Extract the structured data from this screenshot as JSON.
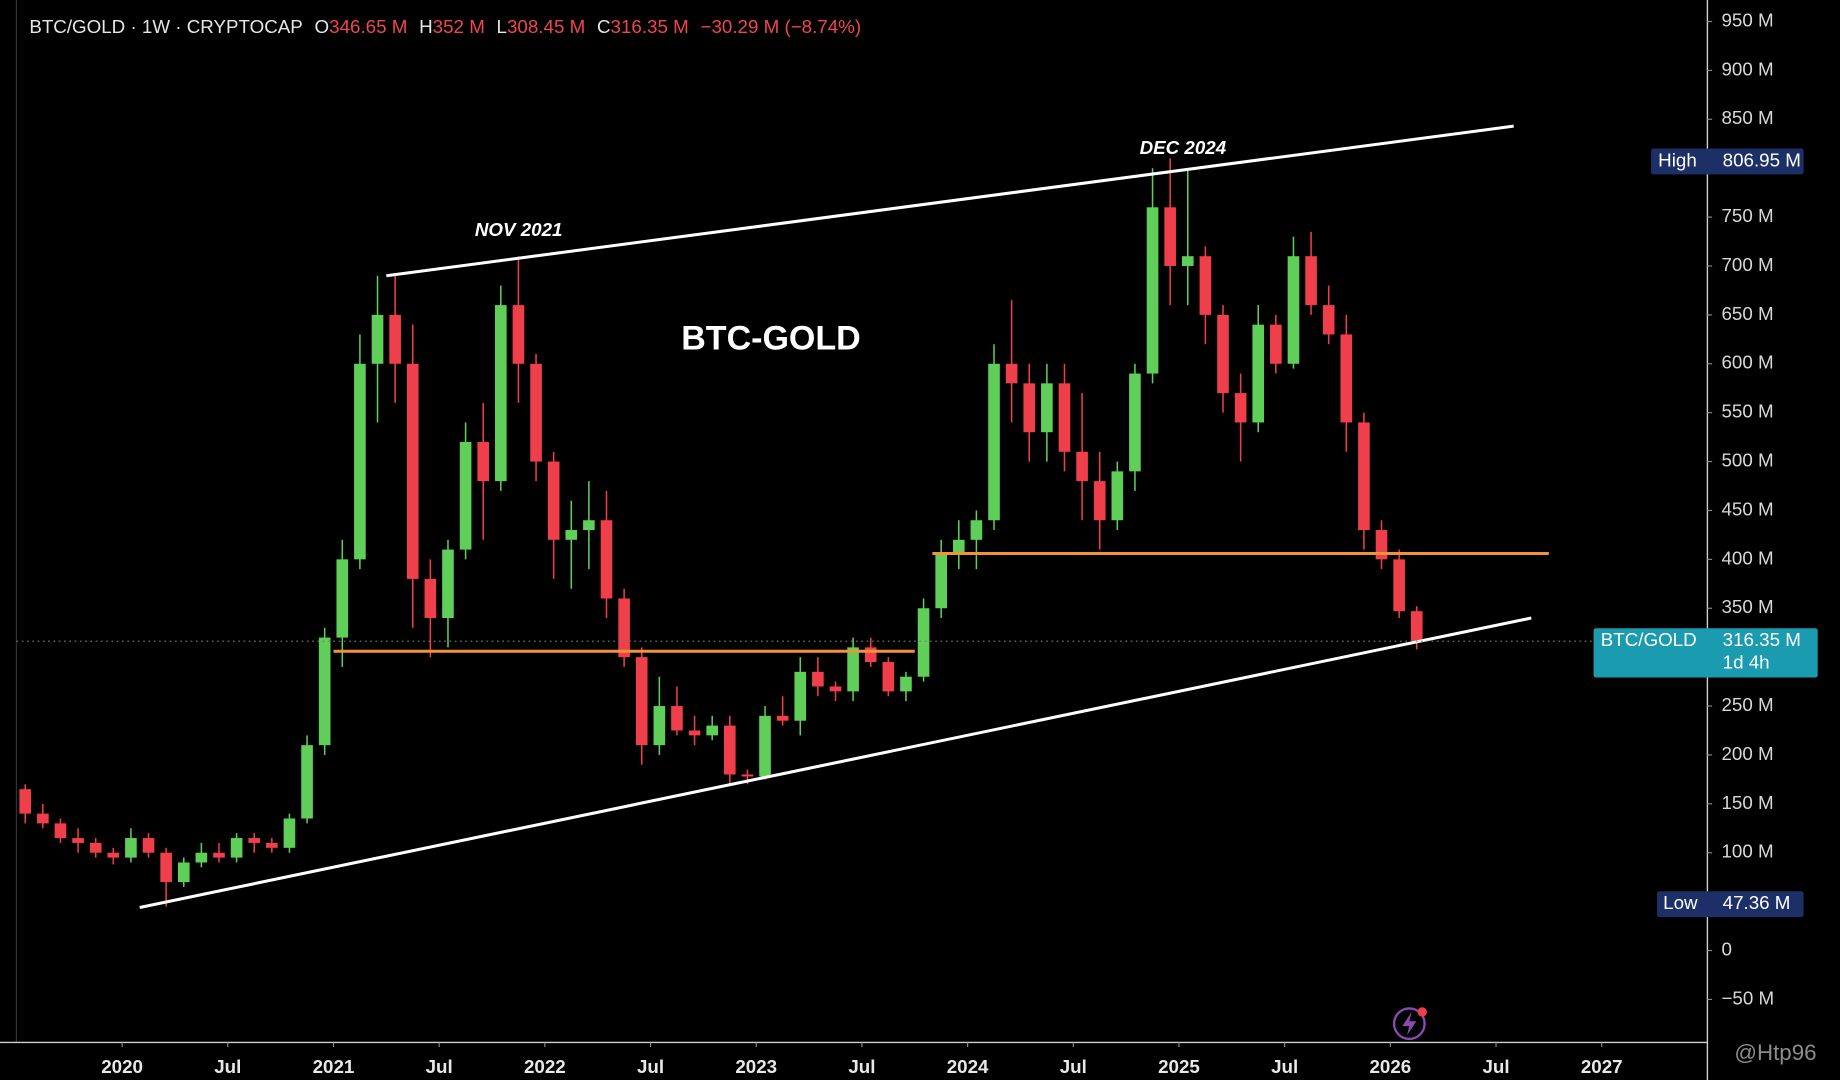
{
  "header": {
    "symbol": "BTC/GOLD · 1W · CRYPTOCAP",
    "ohlc": [
      {
        "key": "O",
        "value": "346.65 M"
      },
      {
        "key": "H",
        "value": "352 M"
      },
      {
        "key": "L",
        "value": "308.45 M"
      },
      {
        "key": "C",
        "value": "316.35 M"
      }
    ],
    "change": "−30.29 M (−8.74%)"
  },
  "chart_data": {
    "type": "candlestick",
    "title": "BTC-GOLD",
    "annotations": [
      "NOV 2021",
      "DEC 2024"
    ],
    "x": [
      "2019-07",
      "2019-08",
      "2019-09",
      "2019-10",
      "2019-11",
      "2019-12",
      "2020-01",
      "2020-02",
      "2020-03",
      "2020-04",
      "2020-05",
      "2020-06",
      "2020-07",
      "2020-08",
      "2020-09",
      "2020-10",
      "2020-11",
      "2020-12",
      "2021-01",
      "2021-02",
      "2021-03",
      "2021-04",
      "2021-05",
      "2021-06",
      "2021-07",
      "2021-08",
      "2021-09",
      "2021-10",
      "2021-11",
      "2021-12",
      "2022-01",
      "2022-02",
      "2022-03",
      "2022-04",
      "2022-05",
      "2022-06",
      "2022-07",
      "2022-08",
      "2022-09",
      "2022-10",
      "2022-11",
      "2022-12",
      "2023-01",
      "2023-02",
      "2023-03",
      "2023-04",
      "2023-05",
      "2023-06",
      "2023-07",
      "2023-08",
      "2023-09",
      "2023-10",
      "2023-11",
      "2023-12",
      "2024-01",
      "2024-02",
      "2024-03",
      "2024-04",
      "2024-05",
      "2024-06",
      "2024-07",
      "2024-08",
      "2024-09",
      "2024-10",
      "2024-11",
      "2024-12",
      "2025-01",
      "2025-02",
      "2025-03",
      "2025-04",
      "2025-05",
      "2025-06",
      "2025-07",
      "2025-08",
      "2025-09",
      "2025-10",
      "2025-11",
      "2025-12",
      "2026-01",
      "2026-02"
    ],
    "open": [
      165,
      140,
      130,
      115,
      110,
      100,
      95,
      115,
      100,
      70,
      90,
      100,
      95,
      115,
      110,
      105,
      135,
      210,
      320,
      400,
      600,
      650,
      600,
      380,
      340,
      410,
      520,
      480,
      660,
      600,
      500,
      420,
      430,
      440,
      360,
      300,
      210,
      250,
      225,
      220,
      230,
      180,
      178,
      240,
      235,
      285,
      270,
      265,
      310,
      295,
      265,
      280,
      350,
      405,
      420,
      440,
      600,
      580,
      530,
      580,
      510,
      480,
      440,
      490,
      590,
      760,
      700,
      710,
      650,
      570,
      540,
      640,
      600,
      710,
      660,
      630,
      540,
      430,
      400,
      347
    ],
    "high": [
      170,
      150,
      135,
      125,
      115,
      105,
      125,
      120,
      105,
      95,
      110,
      110,
      120,
      120,
      115,
      140,
      220,
      330,
      420,
      630,
      690,
      690,
      640,
      400,
      420,
      540,
      560,
      680,
      710,
      610,
      510,
      460,
      480,
      470,
      370,
      310,
      280,
      270,
      240,
      240,
      240,
      185,
      250,
      260,
      300,
      300,
      275,
      320,
      320,
      300,
      285,
      360,
      420,
      440,
      450,
      620,
      665,
      600,
      600,
      600,
      570,
      510,
      500,
      600,
      800,
      810,
      800,
      720,
      660,
      590,
      660,
      650,
      730,
      735,
      680,
      650,
      550,
      440,
      410,
      352
    ],
    "low": [
      130,
      125,
      110,
      100,
      95,
      88,
      90,
      95,
      45,
      65,
      85,
      90,
      90,
      100,
      100,
      100,
      130,
      200,
      290,
      390,
      540,
      560,
      330,
      300,
      310,
      400,
      420,
      470,
      560,
      480,
      380,
      370,
      390,
      340,
      290,
      190,
      200,
      220,
      210,
      215,
      170,
      170,
      175,
      230,
      220,
      260,
      255,
      255,
      290,
      260,
      255,
      275,
      340,
      390,
      390,
      430,
      540,
      500,
      500,
      490,
      440,
      410,
      430,
      470,
      580,
      660,
      660,
      620,
      550,
      500,
      530,
      590,
      595,
      650,
      620,
      510,
      410,
      390,
      340,
      308
    ],
    "close": [
      140,
      130,
      115,
      110,
      100,
      95,
      115,
      100,
      70,
      90,
      100,
      95,
      115,
      110,
      105,
      135,
      210,
      320,
      400,
      600,
      650,
      600,
      380,
      340,
      410,
      520,
      480,
      660,
      600,
      500,
      420,
      430,
      440,
      360,
      300,
      210,
      250,
      225,
      220,
      230,
      180,
      178,
      240,
      235,
      285,
      270,
      265,
      310,
      295,
      265,
      280,
      350,
      405,
      420,
      440,
      600,
      580,
      530,
      580,
      510,
      480,
      440,
      490,
      590,
      760,
      700,
      710,
      650,
      570,
      540,
      640,
      600,
      710,
      660,
      630,
      540,
      430,
      400,
      347,
      316
    ],
    "up_color": "#5fcf5a",
    "down_color": "#ee3f4a",
    "xlim": [
      "2019-07",
      "2027-07"
    ],
    "xticks": [
      {
        "value": "2020-01",
        "label": "2020"
      },
      {
        "value": "2020-07",
        "label": "Jul"
      },
      {
        "value": "2021-01",
        "label": "2021"
      },
      {
        "value": "2021-07",
        "label": "Jul"
      },
      {
        "value": "2022-01",
        "label": "2022"
      },
      {
        "value": "2022-07",
        "label": "Jul"
      },
      {
        "value": "2023-01",
        "label": "2023"
      },
      {
        "value": "2023-07",
        "label": "Jul"
      },
      {
        "value": "2024-01",
        "label": "2024"
      },
      {
        "value": "2024-07",
        "label": "Jul"
      },
      {
        "value": "2025-01",
        "label": "2025"
      },
      {
        "value": "2025-07",
        "label": "Jul"
      },
      {
        "value": "2026-01",
        "label": "2026"
      },
      {
        "value": "2026-07",
        "label": "Jul"
      },
      {
        "value": "2027-01",
        "label": "2027"
      }
    ],
    "ylim": [
      -94,
      972
    ],
    "yticks": [
      {
        "value": 950,
        "label": "950 M"
      },
      {
        "value": 900,
        "label": "900 M"
      },
      {
        "value": 850,
        "label": "850 M"
      },
      {
        "value": 750,
        "label": "750 M"
      },
      {
        "value": 700,
        "label": "700 M"
      },
      {
        "value": 650,
        "label": "650 M"
      },
      {
        "value": 600,
        "label": "600 M"
      },
      {
        "value": 550,
        "label": "550 M"
      },
      {
        "value": 500,
        "label": "500 M"
      },
      {
        "value": 450,
        "label": "450 M"
      },
      {
        "value": 400,
        "label": "400 M"
      },
      {
        "value": 350,
        "label": "350 M"
      },
      {
        "value": 250,
        "label": "250 M"
      },
      {
        "value": 200,
        "label": "200 M"
      },
      {
        "value": 150,
        "label": "150 M"
      },
      {
        "value": 100,
        "label": "100 M"
      },
      0,
      {
        "value": -50,
        "label": "−50 M"
      }
    ],
    "price_tags": [
      {
        "name": "High",
        "value": 806.95,
        "value_label": "806.95 M",
        "color": "#1c2f66"
      },
      {
        "name": "BTC/GOLD",
        "value": 316.35,
        "value_label": "316.35 M",
        "countdown": "1d 4h",
        "color": "#1a9bb0"
      },
      {
        "name": "Low",
        "value": 47.36,
        "value_label": "47.36 M",
        "color": "#1c2f66"
      }
    ],
    "trendlines": [
      {
        "points": [
          [
            "2021-04",
            690
          ],
          [
            "2026-08",
            843
          ]
        ],
        "color": "#ffffff"
      },
      {
        "points": [
          [
            "2020-02",
            44
          ],
          [
            "2026-09",
            340
          ]
        ],
        "color": "#ffffff"
      },
      {
        "points": [
          [
            "2021-01",
            306
          ],
          [
            "2023-10",
            306
          ]
        ],
        "color": "#f2923a"
      },
      {
        "points": [
          [
            "2023-11",
            406
          ],
          [
            "2026-10",
            406
          ]
        ],
        "color": "#f2923a"
      }
    ]
  },
  "watermark": "@Htp96"
}
